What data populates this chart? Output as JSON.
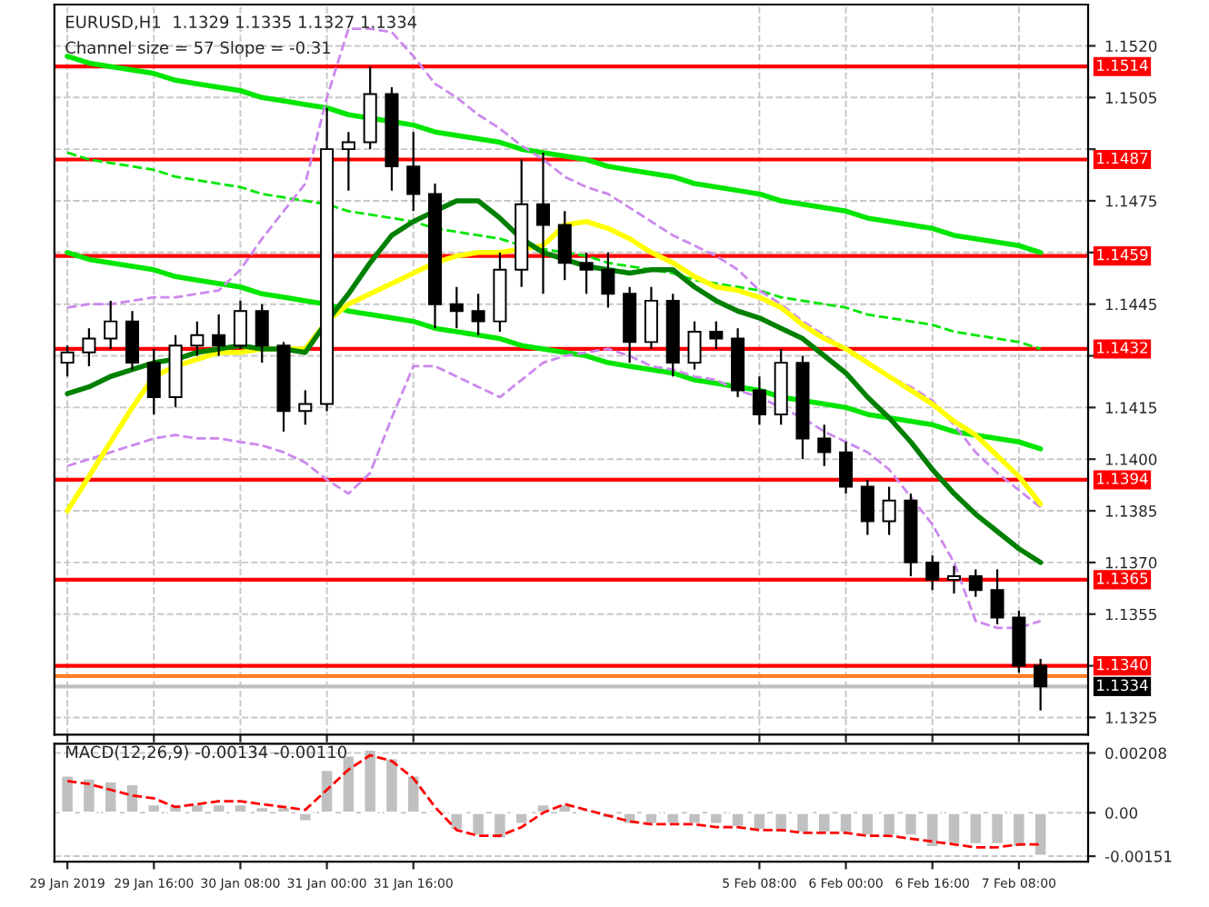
{
  "chart_data": [
    {
      "type": "candlestick",
      "title": "EURUSD,H1  1.1329 1.1335 1.1327 1.1334",
      "annotations": [
        "Channel size = 57 Slope = -0.31"
      ],
      "categories": [
        null,
        null,
        null,
        null,
        null,
        null,
        null,
        null,
        null,
        null,
        null,
        null,
        null,
        null,
        null,
        null,
        null,
        null,
        null,
        null,
        null,
        null,
        null,
        null,
        null,
        null,
        null,
        null,
        null,
        null,
        null,
        null,
        null,
        null,
        null,
        null,
        null,
        null,
        null,
        null,
        null,
        null,
        null,
        null,
        null,
        null
      ],
      "ohlc": [
        [
          1.1428,
          1.1433,
          1.1424,
          1.1431
        ],
        [
          1.1431,
          1.1438,
          1.1427,
          1.1435
        ],
        [
          1.1435,
          1.1446,
          1.1432,
          1.144
        ],
        [
          1.144,
          1.1443,
          1.1426,
          1.1428
        ],
        [
          1.1428,
          1.1432,
          1.1413,
          1.1418
        ],
        [
          1.1418,
          1.1436,
          1.1415,
          1.1433
        ],
        [
          1.1433,
          1.144,
          1.143,
          1.1436
        ],
        [
          1.1436,
          1.1442,
          1.143,
          1.1433
        ],
        [
          1.1433,
          1.1446,
          1.1432,
          1.1443
        ],
        [
          1.1443,
          1.1445,
          1.1428,
          1.1433
        ],
        [
          1.1433,
          1.1434,
          1.1408,
          1.1414
        ],
        [
          1.1414,
          1.142,
          1.141,
          1.1416
        ],
        [
          1.1416,
          1.1502,
          1.1414,
          1.149
        ],
        [
          1.149,
          1.1495,
          1.1478,
          1.1492
        ],
        [
          1.1492,
          1.1514,
          1.149,
          1.1506
        ],
        [
          1.1506,
          1.1508,
          1.1478,
          1.1485
        ],
        [
          1.1485,
          1.1495,
          1.1472,
          1.1477
        ],
        [
          1.1477,
          1.148,
          1.1438,
          1.1445
        ],
        [
          1.1445,
          1.145,
          1.1438,
          1.1443
        ],
        [
          1.1443,
          1.1448,
          1.1436,
          1.144
        ],
        [
          1.144,
          1.146,
          1.1437,
          1.1455
        ],
        [
          1.1455,
          1.1487,
          1.145,
          1.1474
        ],
        [
          1.1474,
          1.1489,
          1.1448,
          1.1468
        ],
        [
          1.1468,
          1.1472,
          1.1452,
          1.1457
        ],
        [
          1.1457,
          1.146,
          1.1448,
          1.1455
        ],
        [
          1.1455,
          1.146,
          1.1444,
          1.1448
        ],
        [
          1.1448,
          1.145,
          1.1428,
          1.1434
        ],
        [
          1.1434,
          1.145,
          1.1432,
          1.1446
        ],
        [
          1.1446,
          1.1448,
          1.1424,
          1.1428
        ],
        [
          1.1428,
          1.144,
          1.1426,
          1.1437
        ],
        [
          1.1437,
          1.144,
          1.1432,
          1.1435
        ],
        [
          1.1435,
          1.1438,
          1.1418,
          1.142
        ],
        [
          1.142,
          1.1424,
          1.141,
          1.1413
        ],
        [
          1.1413,
          1.1432,
          1.141,
          1.1428
        ],
        [
          1.1428,
          1.143,
          1.14,
          1.1406
        ],
        [
          1.1406,
          1.141,
          1.1398,
          1.1402
        ],
        [
          1.1402,
          1.1405,
          1.139,
          1.1392
        ],
        [
          1.1392,
          1.1394,
          1.1378,
          1.1382
        ],
        [
          1.1382,
          1.1392,
          1.1378,
          1.1388
        ],
        [
          1.1388,
          1.139,
          1.1366,
          1.137
        ],
        [
          1.137,
          1.1372,
          1.1362,
          1.1365
        ],
        [
          1.1365,
          1.1369,
          1.1361,
          1.1366
        ],
        [
          1.1366,
          1.1368,
          1.136,
          1.1362
        ],
        [
          1.1362,
          1.1368,
          1.1352,
          1.1354
        ],
        [
          1.1354,
          1.1356,
          1.1338,
          1.134
        ],
        [
          1.134,
          1.1342,
          1.1327,
          1.1334
        ]
      ],
      "series": [
        {
          "type": "line",
          "color": "#00e600",
          "line_style": "solid",
          "values": [
            1.1517,
            1.1515,
            1.1514,
            1.1513,
            1.1512,
            1.151,
            1.1509,
            1.1508,
            1.1507,
            1.1505,
            1.1504,
            1.1503,
            1.1502,
            1.15,
            1.1499,
            1.1498,
            1.1497,
            1.1495,
            1.1494,
            1.1493,
            1.1492,
            1.149,
            1.1489,
            1.1488,
            1.1487,
            1.1485,
            1.1484,
            1.1483,
            1.1482,
            1.148,
            1.1479,
            1.1478,
            1.1477,
            1.1475,
            1.1474,
            1.1473,
            1.1472,
            1.147,
            1.1469,
            1.1468,
            1.1467,
            1.1465,
            1.1464,
            1.1463,
            1.1462,
            1.146
          ]
        },
        {
          "type": "line",
          "color": "#00e600",
          "line_style": "solid",
          "values": [
            1.146,
            1.1458,
            1.1457,
            1.1456,
            1.1455,
            1.1453,
            1.1452,
            1.1451,
            1.145,
            1.1448,
            1.1447,
            1.1446,
            1.1445,
            1.1443,
            1.1442,
            1.1441,
            1.144,
            1.1438,
            1.1437,
            1.1436,
            1.1435,
            1.1433,
            1.1432,
            1.1431,
            1.143,
            1.1428,
            1.1427,
            1.1426,
            1.1425,
            1.1423,
            1.1422,
            1.1421,
            1.142,
            1.1418,
            1.1417,
            1.1416,
            1.1415,
            1.1413,
            1.1412,
            1.1411,
            1.141,
            1.1408,
            1.1407,
            1.1406,
            1.1405,
            1.1403
          ]
        },
        {
          "type": "line",
          "color": "#00e600",
          "line_style": "dashed",
          "values": [
            1.1489,
            1.1487,
            1.1486,
            1.1485,
            1.1484,
            1.1482,
            1.1481,
            1.148,
            1.1479,
            1.1477,
            1.1476,
            1.1475,
            1.1474,
            1.1472,
            1.1471,
            1.147,
            1.1469,
            1.1467,
            1.1466,
            1.1465,
            1.1464,
            1.1462,
            1.1461,
            1.146,
            1.1459,
            1.1457,
            1.1456,
            1.1455,
            1.1454,
            1.1452,
            1.1451,
            1.145,
            1.1449,
            1.1447,
            1.1446,
            1.1445,
            1.1444,
            1.1442,
            1.1441,
            1.144,
            1.1439,
            1.1437,
            1.1436,
            1.1435,
            1.1434,
            1.1432
          ]
        },
        {
          "type": "line",
          "color": "#cc88ee",
          "line_style": "dashed",
          "values": [
            1.1444,
            1.1445,
            1.1445,
            1.1446,
            1.1447,
            1.1447,
            1.1448,
            1.1449,
            1.1455,
            1.1464,
            1.1472,
            1.148,
            1.1505,
            1.1525,
            1.1525,
            1.1524,
            1.1517,
            1.1509,
            1.1505,
            1.15,
            1.1496,
            1.1491,
            1.1487,
            1.1482,
            1.1479,
            1.1477,
            1.1473,
            1.1469,
            1.1465,
            1.1462,
            1.1459,
            1.1455,
            1.1449,
            1.1445,
            1.144,
            1.1436,
            1.1432,
            1.1428,
            1.1424,
            1.1421,
            1.1417,
            1.141,
            1.1402,
            1.1396,
            1.1391,
            1.1386
          ]
        },
        {
          "type": "line",
          "color": "#cc88ee",
          "line_style": "dashed",
          "values": [
            1.1398,
            1.14,
            1.1402,
            1.1404,
            1.1406,
            1.1407,
            1.1406,
            1.1406,
            1.1405,
            1.1404,
            1.1402,
            1.1399,
            1.1394,
            1.139,
            1.1396,
            1.1412,
            1.1427,
            1.1427,
            1.1424,
            1.1421,
            1.1418,
            1.1423,
            1.1428,
            1.143,
            1.1431,
            1.1432,
            1.143,
            1.1427,
            1.1426,
            1.1424,
            1.1423,
            1.142,
            1.1418,
            1.1415,
            1.1412,
            1.1408,
            1.1405,
            1.1402,
            1.1397,
            1.1389,
            1.1381,
            1.137,
            1.1353,
            1.1351,
            1.1351,
            1.1353
          ]
        },
        {
          "type": "line",
          "color": "#ffff00",
          "line_style": "solid",
          "values": [
            1.1385,
            1.1395,
            1.1405,
            1.1415,
            1.1424,
            1.1427,
            1.1429,
            1.1431,
            1.1431,
            1.1432,
            1.1432,
            1.1432,
            1.144,
            1.1445,
            1.1448,
            1.1451,
            1.1454,
            1.1457,
            1.1459,
            1.146,
            1.146,
            1.1461,
            1.1462,
            1.1468,
            1.1469,
            1.1467,
            1.1464,
            1.146,
            1.1457,
            1.1453,
            1.145,
            1.1449,
            1.1447,
            1.1444,
            1.1439,
            1.1435,
            1.1432,
            1.1428,
            1.1424,
            1.142,
            1.1416,
            1.1411,
            1.1407,
            1.1401,
            1.1395,
            1.1387
          ]
        },
        {
          "type": "line",
          "color": "#008000",
          "line_style": "solid",
          "values": [
            1.1419,
            1.1421,
            1.1424,
            1.1426,
            1.1428,
            1.1429,
            1.1431,
            1.1432,
            1.1433,
            1.1432,
            1.1432,
            1.1431,
            1.144,
            1.1448,
            1.1457,
            1.1465,
            1.1469,
            1.1472,
            1.1475,
            1.1475,
            1.147,
            1.1464,
            1.146,
            1.1458,
            1.1456,
            1.1455,
            1.1454,
            1.1455,
            1.1455,
            1.145,
            1.1446,
            1.1443,
            1.1441,
            1.1438,
            1.1435,
            1.143,
            1.1425,
            1.1418,
            1.1412,
            1.1405,
            1.1397,
            1.139,
            1.1384,
            1.1379,
            1.1374,
            1.137
          ]
        }
      ],
      "ylim": [
        1.132,
        1.1532
      ],
      "yticks": [
        {
          "value": 1.152,
          "label": "1.1520"
        },
        {
          "value": 1.1505,
          "label": "1.1505"
        },
        {
          "value": 1.149,
          "label": null
        },
        {
          "value": 1.1475,
          "label": "1.1475"
        },
        {
          "value": 1.146,
          "label": null
        },
        {
          "value": 1.1445,
          "label": "1.1445"
        },
        {
          "value": 1.143,
          "label": null
        },
        {
          "value": 1.1415,
          "label": "1.1415"
        },
        {
          "value": 1.14,
          "label": "1.1400"
        },
        {
          "value": 1.1385,
          "label": "1.1385"
        },
        {
          "value": 1.137,
          "label": "1.1370"
        },
        {
          "value": 1.1355,
          "label": "1.1355"
        },
        {
          "value": 1.134,
          "label": null
        },
        {
          "value": 1.1325,
          "label": "1.1325"
        }
      ],
      "tick_labels": "y",
      "grid": true,
      "ref_lines": [
        {
          "axis": "y",
          "value": 1.1514,
          "label": "1.1514",
          "color": "#ff0000"
        },
        {
          "axis": "y",
          "value": 1.1487,
          "label": "1.1487",
          "color": "#ff0000"
        },
        {
          "axis": "y",
          "value": 1.1459,
          "label": "1.1459",
          "color": "#ff0000"
        },
        {
          "axis": "y",
          "value": 1.1432,
          "label": "1.1432",
          "color": "#ff0000"
        },
        {
          "axis": "y",
          "value": 1.1394,
          "label": "1.1394",
          "color": "#ff0000"
        },
        {
          "axis": "y",
          "value": 1.1365,
          "label": "1.1365",
          "color": "#ff0000"
        },
        {
          "axis": "y",
          "value": 1.134,
          "label": "1.1340",
          "color": "#ff0000"
        },
        {
          "axis": "y",
          "value": 1.1337,
          "label": null,
          "color": "#ff7f27"
        },
        {
          "axis": "y",
          "value": 1.1334,
          "label": "1.1334",
          "color": "#c0c0c0"
        }
      ]
    },
    {
      "type": "bar",
      "title": "MACD(12,26,9) -0.00134 -0.00110",
      "categories": [
        "29 Jan 2019",
        null,
        null,
        null,
        "29 Jan 16:00",
        null,
        null,
        null,
        "30 Jan 08:00",
        null,
        null,
        null,
        "31 Jan 00:00",
        null,
        null,
        null,
        "31 Jan 16:00",
        null,
        null,
        null,
        null,
        null,
        null,
        null,
        null,
        null,
        null,
        null,
        null,
        null,
        null,
        null,
        "5 Feb 08:00",
        null,
        null,
        null,
        "6 Feb 00:00",
        null,
        null,
        null,
        "6 Feb 16:00",
        null,
        null,
        null,
        "7 Feb 08:00",
        null
      ],
      "series": [
        {
          "type": "bar",
          "color": "#c0c0c0",
          "values": [
            0.0013,
            0.0012,
            0.0011,
            0.001,
            0.0003,
            0.0003,
            0.0003,
            0.0003,
            0.0003,
            0.0002,
            0.0002,
            -0.0003,
            0.0015,
            0.002,
            0.0022,
            0.0019,
            0.0013,
            0.0001,
            -0.0006,
            -0.0008,
            -0.0009,
            -0.0004,
            0.0003,
            0.0003,
            0.0001,
            -0.0002,
            -0.0004,
            -0.0004,
            -0.0004,
            -0.0004,
            -0.0004,
            -0.0005,
            -0.0006,
            -0.0007,
            -0.0007,
            -0.0007,
            -0.0007,
            -0.0008,
            -0.0008,
            -0.0008,
            -0.0012,
            -0.0011,
            -0.0011,
            -0.0011,
            -0.0012,
            -0.0015
          ]
        },
        {
          "type": "line",
          "color": "#ff0000",
          "line_style": "dashed",
          "values": [
            0.0011,
            0.001,
            0.0008,
            0.0006,
            0.0005,
            0.0002,
            0.0003,
            0.0004,
            0.0004,
            0.0003,
            0.0002,
            0.0001,
            0.0008,
            0.0015,
            0.002,
            0.0018,
            0.0012,
            0.0002,
            -0.0006,
            -0.0008,
            -0.0008,
            -0.0005,
            0.0,
            0.0003,
            0.0001,
            -0.0001,
            -0.0003,
            -0.0004,
            -0.0004,
            -0.0004,
            -0.0005,
            -0.0005,
            -0.0006,
            -0.0006,
            -0.0007,
            -0.0007,
            -0.0007,
            -0.0008,
            -0.0008,
            -0.0009,
            -0.001,
            -0.0011,
            -0.0012,
            -0.0012,
            -0.0011,
            -0.0011
          ]
        }
      ],
      "ylim": [
        -0.0017,
        0.0024
      ],
      "yticks": [
        {
          "value": 0.00208,
          "label": "0.00208"
        },
        {
          "value": 0,
          "label": "0.00"
        },
        {
          "value": -0.00151,
          "label": "-0.00151"
        }
      ],
      "grid": "y"
    }
  ]
}
